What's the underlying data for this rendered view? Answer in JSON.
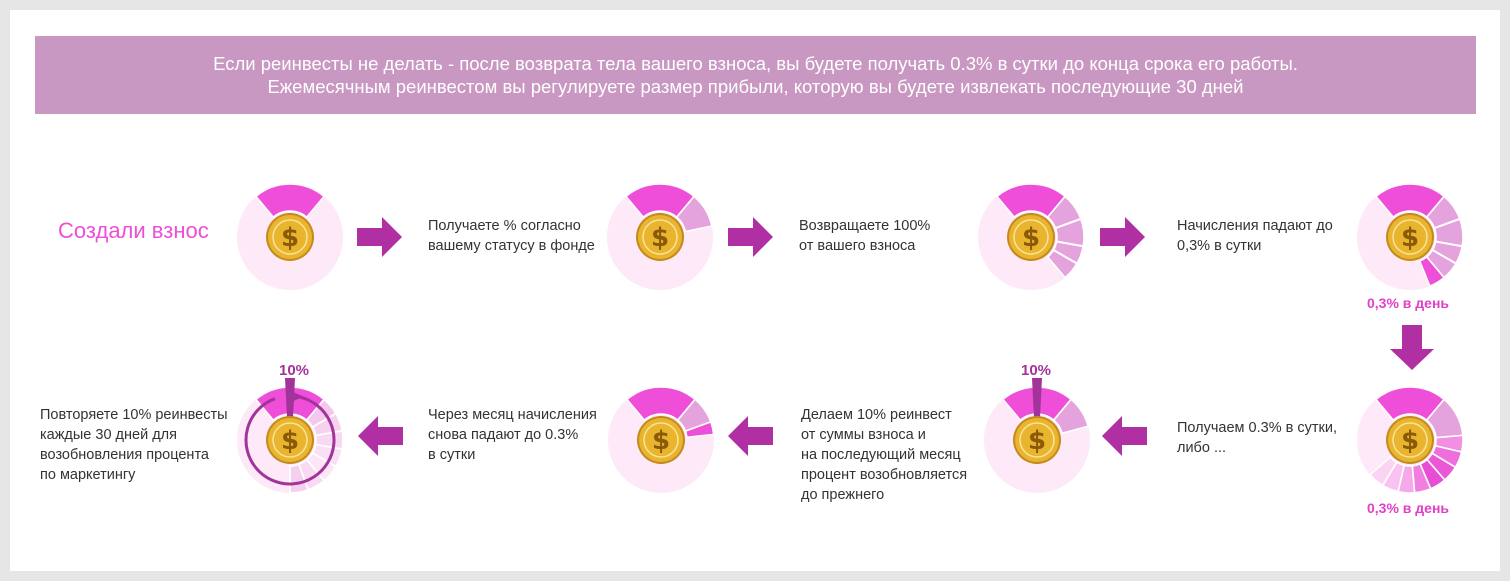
{
  "header": {
    "line1": "Если реинвесты не делать - после возврата тела вашего взноса, вы будете получать 0.3% в сутки до конца срока его работы.",
    "line2": "Ежемесячным реинвестом вы регулируете размер прибыли, которую вы будете извлекать последующие 30 дней"
  },
  "steps": {
    "created": "Создали взнос",
    "s1": [
      "Получаете % согласно",
      "вашему статусу в фонде"
    ],
    "s2": [
      "Возвращаете 100%",
      "от вашего взноса"
    ],
    "s3": [
      "Начисления падают до",
      "0,3% в сутки"
    ],
    "s4": [
      "Получаем 0.3% в сутки,",
      "либо  ..."
    ],
    "s5": [
      "Делаем 10% реинвест",
      "от суммы взноса и",
      "на последующий месяц",
      "процент возобновляется",
      "до прежнего"
    ],
    "s6": [
      "Через месяц начисления",
      "снова падают до 0.3%",
      "в сутки"
    ],
    "s7": [
      "Повторяете 10% реинвесты",
      "каждые 30 дней для",
      "возобновления процента",
      "по маркетингу"
    ]
  },
  "labels": {
    "rate_top": "0,3% в день",
    "rate_bottom": "0,3% в день",
    "pct_mid": "10%",
    "pct_left": "10%"
  },
  "colors": {
    "pale_pink": "#fde9f7",
    "light_pink": "#e5a3dd",
    "hot_pink": "#ee4ed8",
    "magenta_arrow": "#b02fa2",
    "purple_ring": "#a2339a",
    "banner": "#c998c2",
    "coin_gold": "#e9b42e"
  }
}
